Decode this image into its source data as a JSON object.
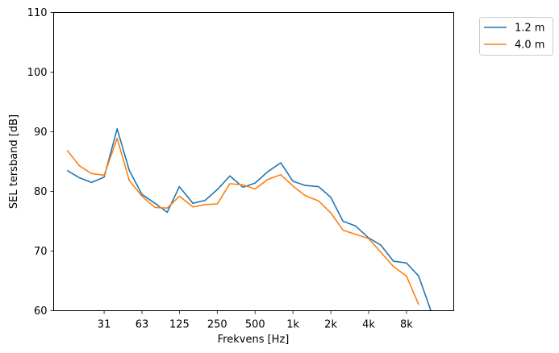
{
  "chart_data": {
    "type": "line",
    "xlabel": "Frekvens [Hz]",
    "ylabel": "SEL tersband [dB]",
    "ylim": [
      60,
      110
    ],
    "yticks": [
      60,
      70,
      80,
      90,
      100,
      110
    ],
    "x_scale": "log",
    "xticks": [
      {
        "value": 31.5,
        "label": "31"
      },
      {
        "value": 63,
        "label": "63"
      },
      {
        "value": 125,
        "label": "125"
      },
      {
        "value": 250,
        "label": "250"
      },
      {
        "value": 500,
        "label": "500"
      },
      {
        "value": 1000,
        "label": "1k"
      },
      {
        "value": 2000,
        "label": "2k"
      },
      {
        "value": 4000,
        "label": "4k"
      },
      {
        "value": 8000,
        "label": "8k"
      }
    ],
    "x": [
      16,
      20,
      25,
      31.5,
      40,
      50,
      63,
      80,
      100,
      125,
      160,
      200,
      250,
      315,
      400,
      500,
      630,
      800,
      1000,
      1250,
      1600,
      2000,
      2500,
      3150,
      4000,
      5000,
      6300,
      8000,
      10000,
      12500,
      16000
    ],
    "series": [
      {
        "name": "1.2 m",
        "color": "#1f77b4",
        "values": [
          83.5,
          82.3,
          81.5,
          82.4,
          90.5,
          83.5,
          79.5,
          78.0,
          76.5,
          80.8,
          78.0,
          78.5,
          80.3,
          82.6,
          80.7,
          81.4,
          83.3,
          84.8,
          81.7,
          81.0,
          80.8,
          79.0,
          75.0,
          74.2,
          72.2,
          71.0,
          68.3,
          68.0,
          65.8,
          60.0,
          null
        ]
      },
      {
        "name": "4.0 m",
        "color": "#ff7f0e",
        "values": [
          86.9,
          84.3,
          83.0,
          82.7,
          88.9,
          81.8,
          79.2,
          77.3,
          77.2,
          79.2,
          77.4,
          77.8,
          77.9,
          81.3,
          81.1,
          80.4,
          82.0,
          82.8,
          80.9,
          79.3,
          78.4,
          76.4,
          73.5,
          72.8,
          72.1,
          69.8,
          67.4,
          65.8,
          61.0,
          null,
          null
        ]
      }
    ],
    "grid": false,
    "legend_position": "outside-top-right"
  }
}
